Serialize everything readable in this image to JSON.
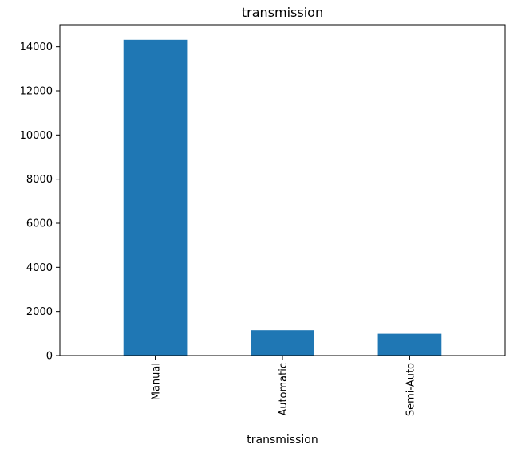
{
  "chart_data": {
    "type": "bar",
    "title": "transmission",
    "xlabel": "transmission",
    "ylabel": "",
    "categories": [
      "Manual",
      "Automatic",
      "Semi-Auto"
    ],
    "values": [
      14320,
      1150,
      990
    ],
    "ylim": [
      0,
      15000
    ],
    "yticks": [
      0,
      2000,
      4000,
      6000,
      8000,
      10000,
      12000,
      14000
    ],
    "ytick_labels": [
      "0",
      "2000",
      "4000",
      "6000",
      "8000",
      "10000",
      "12000",
      "14000"
    ],
    "bar_color": "#1f77b4",
    "grid": false,
    "legend": "none"
  }
}
